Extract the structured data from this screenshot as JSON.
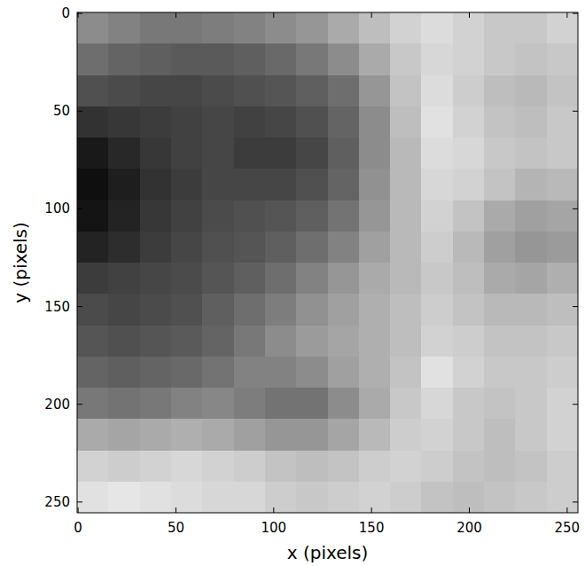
{
  "chart_data": {
    "type": "image",
    "x_label": "x (pixels)",
    "y_label": "y (pixels)",
    "xlim": [
      -0.5,
      255.5
    ],
    "ylim": [
      255.5,
      -0.5
    ],
    "xticks": [
      0,
      50,
      100,
      150,
      200,
      250
    ],
    "yticks": [
      0,
      50,
      100,
      150,
      200,
      250
    ],
    "color": "gray",
    "clim": [
      0,
      255
    ],
    "cells": [
      [
        140,
        130,
        120,
        120,
        125,
        130,
        140,
        150,
        170,
        190,
        210,
        220,
        210,
        200,
        200,
        210
      ],
      [
        110,
        100,
        95,
        90,
        90,
        95,
        105,
        120,
        140,
        170,
        200,
        215,
        210,
        200,
        195,
        200
      ],
      [
        80,
        75,
        70,
        70,
        75,
        80,
        85,
        95,
        110,
        150,
        195,
        220,
        205,
        190,
        185,
        195
      ],
      [
        50,
        55,
        60,
        65,
        70,
        65,
        70,
        80,
        100,
        140,
        190,
        225,
        210,
        195,
        190,
        200
      ],
      [
        25,
        40,
        55,
        65,
        70,
        60,
        60,
        70,
        95,
        140,
        185,
        220,
        215,
        200,
        195,
        200
      ],
      [
        15,
        30,
        50,
        60,
        70,
        70,
        70,
        80,
        100,
        145,
        185,
        215,
        210,
        195,
        180,
        185
      ],
      [
        20,
        35,
        55,
        65,
        75,
        80,
        85,
        95,
        115,
        150,
        185,
        210,
        195,
        170,
        160,
        165
      ],
      [
        35,
        45,
        60,
        70,
        80,
        85,
        95,
        110,
        130,
        160,
        185,
        205,
        185,
        160,
        150,
        155
      ],
      [
        60,
        65,
        70,
        75,
        85,
        95,
        110,
        130,
        150,
        170,
        185,
        200,
        190,
        170,
        165,
        175
      ],
      [
        75,
        70,
        75,
        80,
        95,
        110,
        125,
        145,
        160,
        175,
        190,
        205,
        195,
        185,
        185,
        190
      ],
      [
        85,
        80,
        85,
        90,
        100,
        120,
        140,
        155,
        165,
        175,
        190,
        210,
        205,
        195,
        195,
        200
      ],
      [
        100,
        95,
        100,
        105,
        115,
        130,
        130,
        140,
        160,
        175,
        195,
        225,
        210,
        200,
        200,
        205
      ],
      [
        120,
        115,
        120,
        130,
        135,
        125,
        115,
        115,
        140,
        170,
        200,
        215,
        200,
        195,
        200,
        210
      ],
      [
        170,
        165,
        170,
        175,
        170,
        160,
        150,
        150,
        165,
        185,
        205,
        210,
        200,
        190,
        200,
        210
      ],
      [
        210,
        205,
        210,
        215,
        210,
        205,
        195,
        190,
        195,
        205,
        210,
        205,
        195,
        190,
        195,
        205
      ],
      [
        225,
        230,
        225,
        220,
        215,
        215,
        205,
        200,
        205,
        210,
        205,
        195,
        190,
        195,
        200,
        205
      ]
    ]
  }
}
